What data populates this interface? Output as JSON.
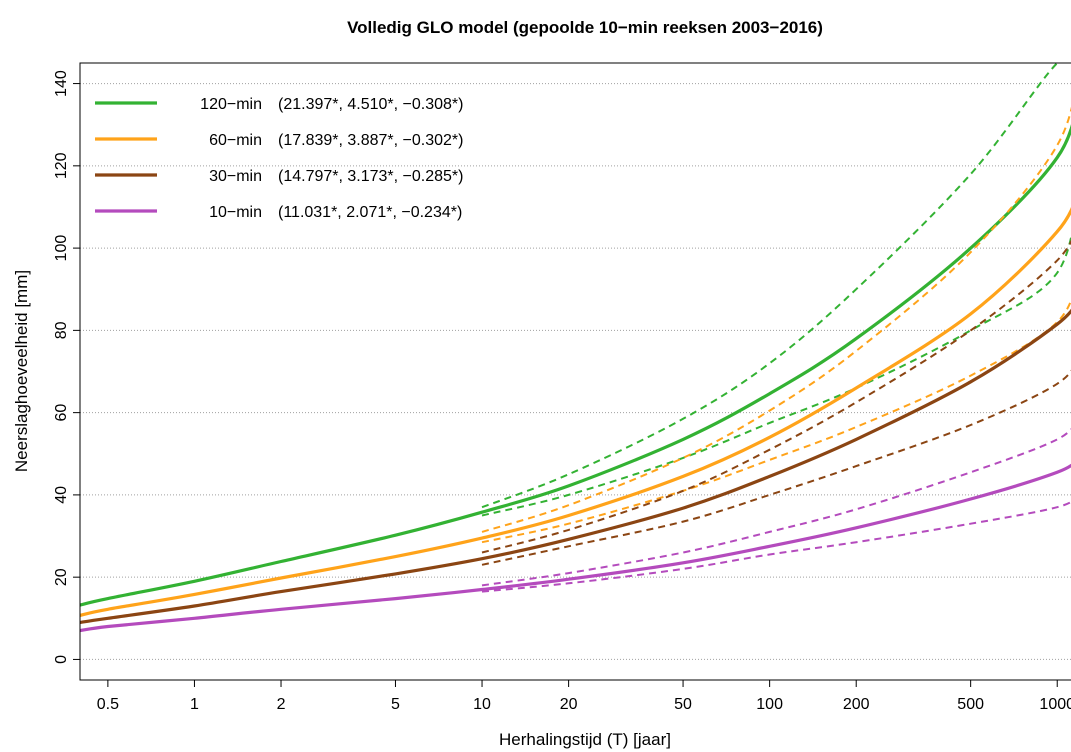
{
  "chart_data": {
    "type": "line",
    "title": "Volledig GLO model (gepoolde 10−min reeksen 2003−2016)",
    "xlabel": "Herhalingstijd (T) [jaar]",
    "ylabel": "Neerslaghoeveelheid [mm]",
    "x_scale": "log",
    "xlim": [
      0.4,
      1200
    ],
    "ylim": [
      -5,
      145
    ],
    "x_ticks": [
      0.5,
      1,
      2,
      5,
      10,
      20,
      50,
      100,
      200,
      500,
      1000
    ],
    "x_tick_labels": [
      "0.5",
      "1",
      "2",
      "5",
      "10",
      "20",
      "50",
      "100",
      "200",
      "500",
      "1000"
    ],
    "y_ticks": [
      0,
      20,
      40,
      60,
      80,
      100,
      120,
      140
    ],
    "y_tick_labels": [
      "0",
      "20",
      "40",
      "60",
      "80",
      "100",
      "120",
      "140"
    ],
    "grid": "horizontal dotted",
    "legend_position": "top-left",
    "series": [
      {
        "name": "120−min",
        "params": "(21.397*, 4.510*, −0.308*)",
        "color": "#33b233",
        "x": [
          0.4,
          0.5,
          1,
          2,
          5,
          10,
          20,
          50,
          100,
          200,
          500,
          1000,
          1200
        ],
        "values": [
          13.2,
          14.8,
          19.0,
          23.8,
          30.2,
          35.8,
          42.2,
          53.5,
          64.6,
          78.0,
          100.0,
          122.0,
          138.0
        ],
        "ci_x": [
          10,
          20,
          50,
          100,
          200,
          500,
          1000,
          1200
        ],
        "ci_lower": [
          35.0,
          40.0,
          49.0,
          57.5,
          66.0,
          80.0,
          94.0,
          117.0
        ],
        "ci_upper": [
          37.0,
          45.0,
          58.5,
          72.0,
          90.0,
          118.0,
          145.0,
          145.0
        ]
      },
      {
        "name": "60−min",
        "params": "(17.839*, 3.887*, −0.302*)",
        "color": "#ffa31a",
        "x": [
          0.4,
          0.5,
          1,
          2,
          5,
          10,
          20,
          50,
          100,
          200,
          500,
          1000,
          1200
        ],
        "values": [
          10.7,
          12.2,
          15.8,
          19.8,
          25.0,
          29.5,
          35.0,
          44.5,
          54.0,
          66.0,
          84.0,
          104.0,
          115.0
        ],
        "ci_x": [
          10,
          20,
          50,
          100,
          200,
          500,
          1000,
          1200
        ],
        "ci_lower": [
          28.5,
          33.0,
          41.0,
          48.5,
          56.5,
          69.0,
          82.0,
          95.0
        ],
        "ci_upper": [
          31.0,
          37.5,
          49.0,
          60.5,
          75.0,
          99.0,
          125.0,
          145.0
        ]
      },
      {
        "name": "30−min",
        "params": "(14.797*, 3.173*, −0.285*)",
        "color": "#8b4513",
        "x": [
          0.4,
          0.5,
          1,
          2,
          5,
          10,
          20,
          50,
          100,
          200,
          500,
          1000,
          1200
        ],
        "values": [
          9.0,
          10.0,
          13.0,
          16.5,
          20.8,
          24.5,
          29.2,
          36.8,
          44.5,
          53.5,
          67.5,
          81.5,
          88.0
        ],
        "ci_x": [
          10,
          20,
          50,
          100,
          200,
          500,
          1000,
          1200
        ],
        "ci_lower": [
          23.0,
          27.5,
          33.5,
          40.0,
          47.0,
          57.0,
          67.0,
          74.0
        ],
        "ci_upper": [
          26.0,
          31.5,
          41.0,
          51.0,
          62.5,
          80.0,
          97.0,
          107.0
        ]
      },
      {
        "name": "10−min",
        "params": "(11.031*, 2.071*, −0.234*)",
        "color": "#b44bbd",
        "x": [
          0.4,
          0.5,
          1,
          2,
          5,
          10,
          20,
          50,
          100,
          200,
          500,
          1000,
          1200
        ],
        "values": [
          7.0,
          8.0,
          10.0,
          12.2,
          14.8,
          17.0,
          19.5,
          23.5,
          27.5,
          32.0,
          39.0,
          45.5,
          49.0
        ],
        "ci_x": [
          10,
          20,
          50,
          100,
          200,
          500,
          1000,
          1200
        ],
        "ci_lower": [
          16.5,
          18.5,
          22.0,
          25.5,
          28.5,
          33.0,
          37.0,
          40.0
        ],
        "ci_upper": [
          18.0,
          21.0,
          26.0,
          31.0,
          36.5,
          45.5,
          53.5,
          59.0
        ]
      }
    ]
  }
}
